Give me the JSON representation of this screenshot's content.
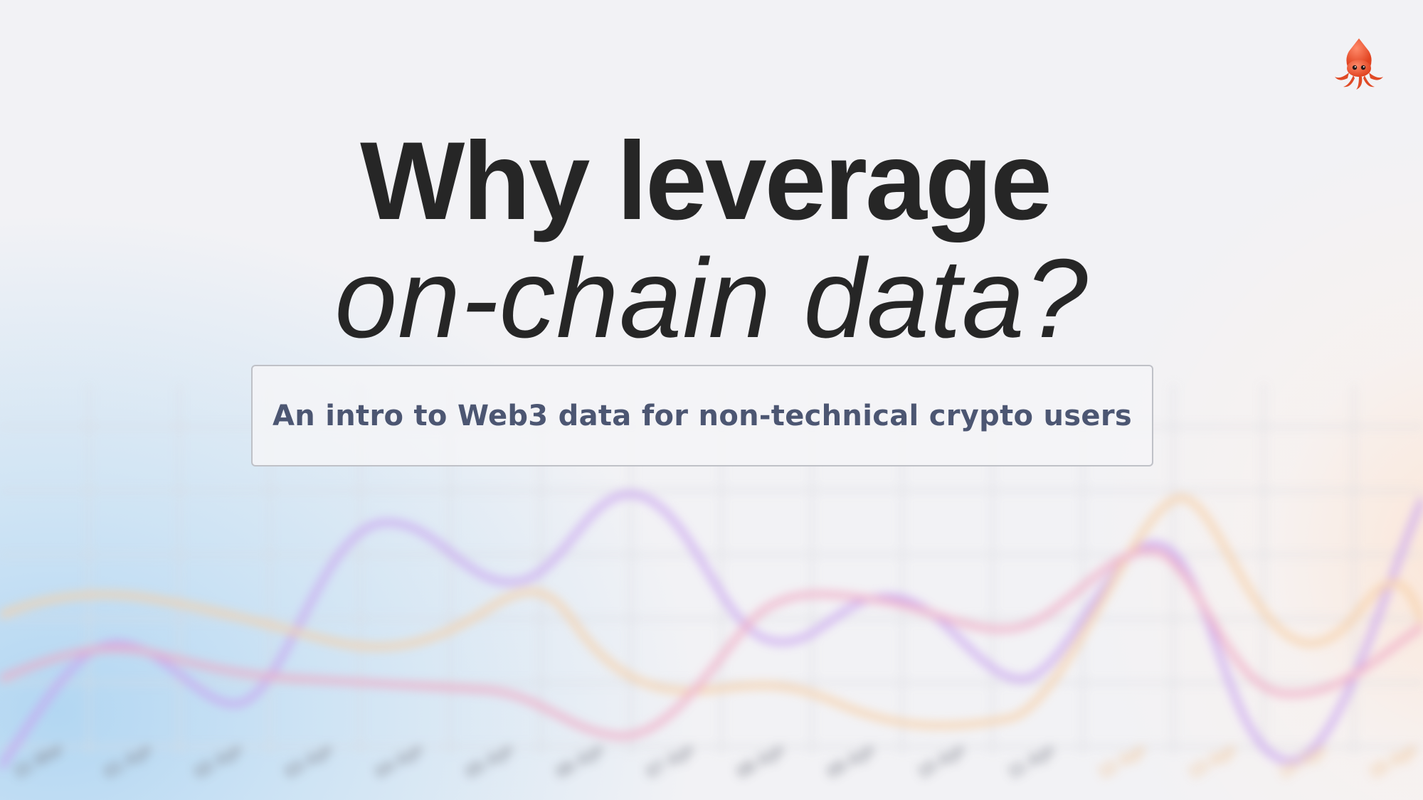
{
  "headline": {
    "line1": "Why leverage",
    "line2": "on-chain data?"
  },
  "subtitle": "An intro to Web3 data for non-technical crypto users",
  "mascot": {
    "icon": "squid-icon",
    "color": "#f0553a"
  },
  "background_chart": {
    "x_tick_labels": [
      "31 Mar",
      "01 Apr",
      "02 Apr",
      "03 Apr",
      "04 Apr",
      "05 Apr",
      "06 Apr",
      "07 Apr",
      "08 Apr",
      "09 Apr",
      "10 Apr",
      "11 Apr",
      "12 Apr",
      "13 Apr",
      "14 Apr",
      "15 Apr"
    ],
    "series_colors": [
      "#c59cf0",
      "#f4a7c4",
      "#f8d0a6",
      "#e89ab8"
    ]
  },
  "colors": {
    "background": "#f2f2f5",
    "headline": "#262626",
    "subtitle": "#4c5672",
    "box_border": "#bfc1c7"
  }
}
